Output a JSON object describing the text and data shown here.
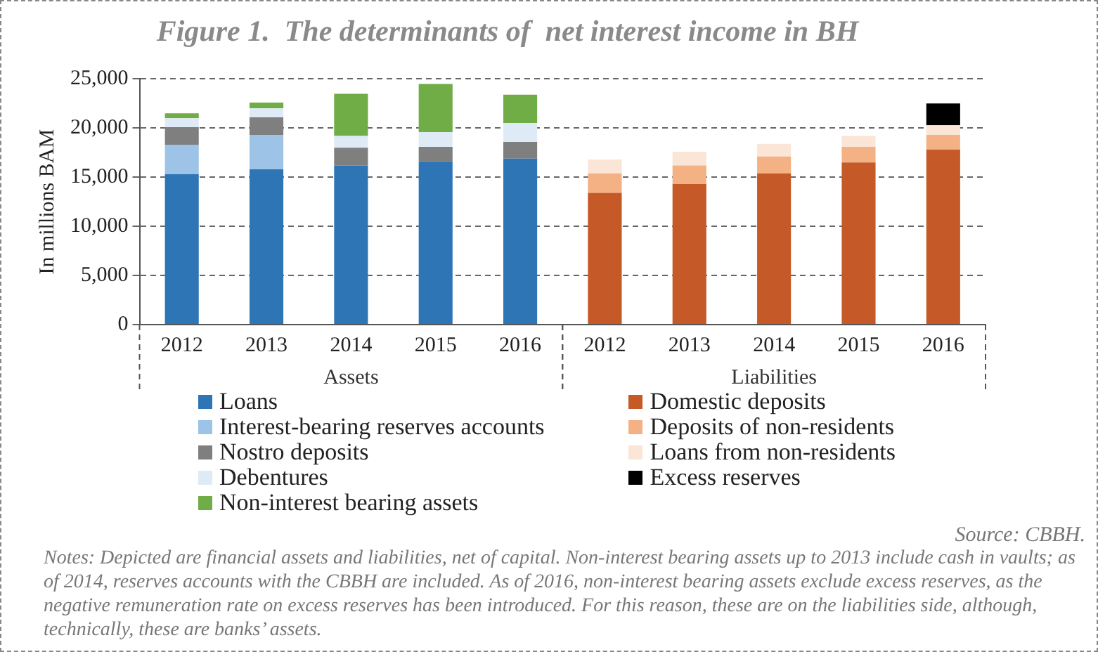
{
  "chart_data": {
    "type": "bar",
    "title": "Figure 1.  The determinants of  net interest income in BH",
    "ylabel": "In millions BAM",
    "categories": [
      "2012",
      "2013",
      "2014",
      "2015",
      "2016",
      "2012",
      "2013",
      "2014",
      "2015",
      "2016"
    ],
    "stacked": true,
    "ylim": [
      0,
      25000
    ],
    "yticks": [
      0,
      {
        "value": 5000,
        "label": "5,000"
      },
      {
        "value": 10000,
        "label": "10,000"
      },
      {
        "value": 15000,
        "label": "15,000"
      },
      {
        "value": 20000,
        "label": "20,000"
      },
      {
        "value": 25000,
        "label": "25,000"
      }
    ],
    "grid": "y",
    "legend": "bottom",
    "series": [
      {
        "name": "Loans",
        "color": "#2e75b6",
        "values": [
          15300,
          15800,
          16200,
          16600,
          16900,
          null,
          null,
          null,
          null,
          null
        ]
      },
      {
        "name": "Interest-bearing reserves accounts",
        "color": "#9dc3e6",
        "values": [
          3000,
          3500,
          0,
          0,
          0,
          null,
          null,
          null,
          null,
          null
        ]
      },
      {
        "name": "Nostro deposits",
        "color": "#7f7f7f",
        "values": [
          1800,
          1800,
          1800,
          1500,
          1700,
          null,
          null,
          null,
          null,
          null
        ]
      },
      {
        "name": "Debentures",
        "color": "#deebf7",
        "values": [
          900,
          900,
          1200,
          1500,
          1900,
          null,
          null,
          null,
          null,
          null
        ]
      },
      {
        "name": "Non-interest bearing assets",
        "color": "#70ad47",
        "values": [
          500,
          600,
          4300,
          4900,
          2900,
          null,
          null,
          null,
          null,
          null
        ]
      },
      {
        "name": "Domestic deposits",
        "color": "#c55a28",
        "values": [
          null,
          null,
          null,
          null,
          null,
          13400,
          14300,
          15400,
          16500,
          17800
        ]
      },
      {
        "name": "Deposits of non-residents",
        "color": "#f4b183",
        "values": [
          null,
          null,
          null,
          null,
          null,
          2000,
          1900,
          1700,
          1600,
          1500
        ]
      },
      {
        "name": "Loans from non-residents",
        "color": "#fbe5d6",
        "values": [
          null,
          null,
          null,
          null,
          null,
          1400,
          1400,
          1300,
          1100,
          1000
        ]
      },
      {
        "name": "Excess reserves",
        "color": "#000000",
        "values": [
          null,
          null,
          null,
          null,
          null,
          null,
          null,
          null,
          null,
          2200
        ]
      }
    ],
    "annotations": [
      "Assets",
      "Liabilities",
      "Source: CBBH.",
      "Notes: Depicted are financial assets and liabilities, net of  capital. Non-interest bearing assets up to 2013 include cash in vaults; as of  2014, reserves accounts with the CBBH are included. As of  2016, non-interest bearing assets exclude excess reserves, as the negative remuneration rate on excess reserves has been introduced. For this reason, these are on the liabilities side, although, technically, these are banks’ assets."
    ]
  }
}
